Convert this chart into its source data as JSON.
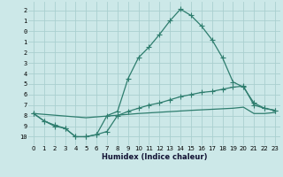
{
  "xlabel": "Humidex (Indice chaleur)",
  "background_color": "#cce8e8",
  "grid_color": "#aacfcf",
  "line_color": "#2e7d6e",
  "xlim": [
    -0.5,
    23.5
  ],
  "ylim": [
    -10.8,
    2.8
  ],
  "yticks": [
    2,
    1,
    0,
    -1,
    -2,
    -3,
    -4,
    -5,
    -6,
    -7,
    -8,
    -9,
    -10
  ],
  "ytick_labels": [
    "2",
    "1",
    "0",
    "1",
    "2",
    "3",
    "4",
    "5",
    "6",
    "7",
    "8",
    "9",
    "10"
  ],
  "xticks": [
    0,
    1,
    2,
    3,
    4,
    5,
    6,
    7,
    8,
    9,
    10,
    11,
    12,
    13,
    14,
    15,
    16,
    17,
    18,
    19,
    20,
    21,
    22,
    23
  ],
  "line1_x": [
    0,
    1,
    2,
    3,
    4,
    5,
    6,
    7,
    8,
    9,
    10,
    11,
    12,
    13,
    14,
    15,
    16,
    17,
    18,
    19,
    20,
    21,
    22,
    23
  ],
  "line1_y": [
    -7.8,
    -8.5,
    -8.9,
    -9.2,
    -10.0,
    -10.0,
    -9.8,
    -8.0,
    -7.6,
    -4.5,
    -2.5,
    -1.5,
    -0.3,
    1.0,
    2.1,
    1.5,
    0.5,
    -0.8,
    -2.5,
    -4.8,
    -5.3,
    -6.8,
    -7.3,
    -7.5
  ],
  "line2_x": [
    0,
    1,
    2,
    3,
    4,
    5,
    6,
    7,
    8,
    9,
    10,
    11,
    12,
    13,
    14,
    15,
    16,
    17,
    18,
    19,
    20,
    21,
    22,
    23
  ],
  "line2_y": [
    -7.8,
    -8.5,
    -9.0,
    -9.2,
    -10.0,
    -10.0,
    -9.8,
    -9.5,
    -8.0,
    -7.6,
    -7.3,
    -7.0,
    -6.8,
    -6.5,
    -6.2,
    -6.0,
    -5.8,
    -5.7,
    -5.5,
    -5.3,
    -5.2,
    -7.0,
    -7.3,
    -7.5
  ],
  "line3_x": [
    0,
    5,
    10,
    15,
    19,
    20,
    21,
    22,
    23
  ],
  "line3_y": [
    -7.8,
    -8.2,
    -7.8,
    -7.5,
    -7.3,
    -7.2,
    -7.8,
    -7.8,
    -7.7
  ]
}
